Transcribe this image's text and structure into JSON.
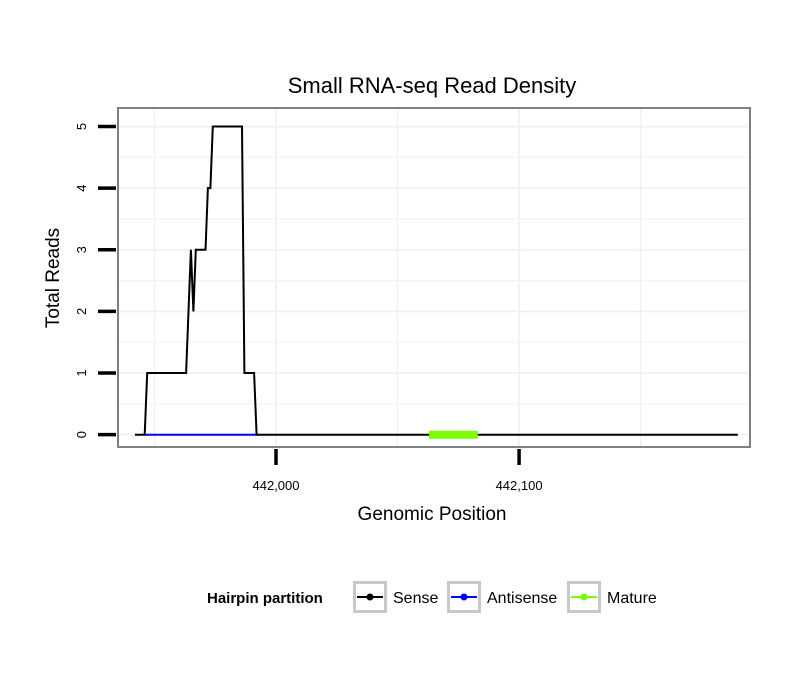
{
  "chart_data": {
    "type": "line",
    "title": "Small RNA-seq Read Density",
    "xlabel": "Genomic Position",
    "ylabel": "Total Reads",
    "xlim": [
      441935,
      442195
    ],
    "ylim": [
      -0.2,
      5.3
    ],
    "x_ticks": [
      {
        "value": 442000,
        "label": "442,000"
      },
      {
        "value": 442100,
        "label": "442,100"
      }
    ],
    "y_ticks": [
      {
        "value": 0,
        "label": "0"
      },
      {
        "value": 1,
        "label": "1"
      },
      {
        "value": 2,
        "label": "2"
      },
      {
        "value": 3,
        "label": "3"
      },
      {
        "value": 4,
        "label": "4"
      },
      {
        "value": 5,
        "label": "5"
      }
    ],
    "grid": true,
    "legend": {
      "title": "Hairpin partition",
      "position": "bottom",
      "entries": [
        {
          "name": "Sense",
          "color": "#000000"
        },
        {
          "name": "Antisense",
          "color": "#0000ff"
        },
        {
          "name": "Mature",
          "color": "#7cfc00"
        }
      ]
    },
    "series": [
      {
        "name": "Sense",
        "color": "#000000",
        "x": [
          441942,
          441946,
          441947,
          441963,
          441965,
          441966,
          441967,
          441971,
          441972,
          441973,
          441974,
          441986,
          441987,
          441991,
          441992,
          441999,
          442007,
          442100,
          442190
        ],
        "y": [
          0,
          0,
          1,
          1,
          3,
          2,
          3,
          3,
          4,
          4,
          5,
          5,
          1,
          1,
          0,
          0,
          0,
          0,
          0
        ]
      },
      {
        "name": "Antisense",
        "color": "#0000ff",
        "x": [
          441946,
          441992
        ],
        "y": [
          0,
          0
        ]
      },
      {
        "name": "Mature",
        "color": "#7cfc00",
        "x": [
          442063,
          442083
        ],
        "y": [
          0,
          0
        ]
      }
    ]
  }
}
